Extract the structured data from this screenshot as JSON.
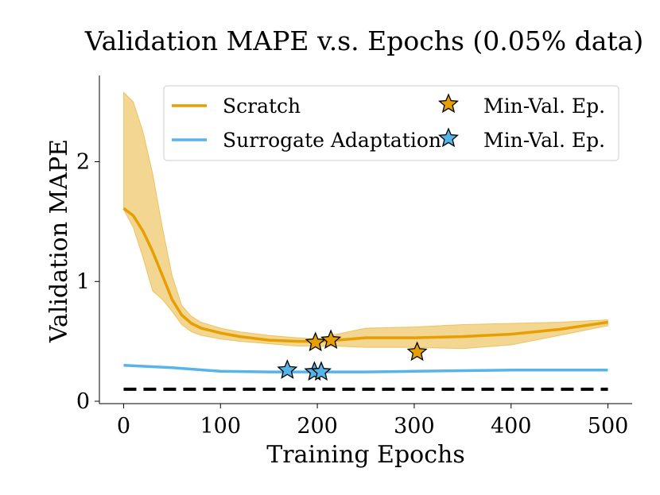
{
  "chart_data": {
    "type": "line",
    "title": "Validation MAPE v.s. Epochs (0.05% data)",
    "xlabel": "Training Epochs",
    "ylabel": "Validation MAPE",
    "xlim": [
      -25,
      525
    ],
    "ylim": [
      -0.02,
      2.72
    ],
    "xticks": [
      {
        "value": 0,
        "label": "0"
      },
      {
        "value": 100,
        "label": "100"
      },
      {
        "value": 200,
        "label": "200"
      },
      {
        "value": 300,
        "label": "300"
      },
      {
        "value": 400,
        "label": "400"
      },
      {
        "value": 500,
        "label": "500"
      }
    ],
    "yticks": [
      {
        "value": 0,
        "label": "0"
      },
      {
        "value": 1,
        "label": "1"
      },
      {
        "value": 2,
        "label": "2"
      }
    ],
    "series": [
      {
        "name": "Scratch",
        "color": "#E69F00",
        "band_color": "#F2CF80",
        "x": [
          0,
          10,
          20,
          30,
          40,
          50,
          60,
          70,
          80,
          100,
          120,
          150,
          180,
          200,
          220,
          250,
          300,
          350,
          400,
          450,
          500
        ],
        "mean": [
          1.61,
          1.55,
          1.42,
          1.25,
          1.05,
          0.85,
          0.72,
          0.65,
          0.61,
          0.57,
          0.54,
          0.51,
          0.5,
          0.5,
          0.51,
          0.53,
          0.53,
          0.54,
          0.56,
          0.6,
          0.66
        ],
        "upper": [
          2.58,
          2.5,
          2.25,
          1.9,
          1.45,
          1.05,
          0.8,
          0.71,
          0.66,
          0.61,
          0.58,
          0.55,
          0.53,
          0.52,
          0.56,
          0.61,
          0.62,
          0.64,
          0.65,
          0.66,
          0.68
        ],
        "lower": [
          1.6,
          1.45,
          1.2,
          0.92,
          0.85,
          0.75,
          0.64,
          0.58,
          0.55,
          0.52,
          0.5,
          0.48,
          0.46,
          0.46,
          0.46,
          0.45,
          0.45,
          0.44,
          0.47,
          0.55,
          0.63
        ]
      },
      {
        "name": "Surrogate Adaptation",
        "color": "#56B4E9",
        "x": [
          0,
          50,
          100,
          150,
          200,
          250,
          300,
          350,
          400,
          450,
          500
        ],
        "mean": [
          0.3,
          0.28,
          0.25,
          0.245,
          0.245,
          0.245,
          0.25,
          0.255,
          0.26,
          0.26,
          0.26
        ]
      }
    ],
    "reference_line": {
      "y": 0.1,
      "style": "dashed",
      "color": "#000000"
    },
    "markers": [
      {
        "series": "Scratch",
        "label": "Min-Val. Ep.",
        "color": "#E69F00",
        "points": [
          {
            "x": 198,
            "y": 0.49
          },
          {
            "x": 214,
            "y": 0.51
          },
          {
            "x": 303,
            "y": 0.41
          }
        ]
      },
      {
        "series": "Surrogate Adaptation",
        "label": "Min-Val. Ep.",
        "color": "#56B4E9",
        "points": [
          {
            "x": 169,
            "y": 0.26
          },
          {
            "x": 197,
            "y": 0.245
          },
          {
            "x": 204,
            "y": 0.245
          }
        ]
      }
    ],
    "legend": {
      "position": "top-right",
      "entries": [
        {
          "label": "Scratch",
          "kind": "line",
          "color": "#E69F00"
        },
        {
          "label": "Min-Val. Ep.",
          "kind": "star",
          "color": "#E69F00"
        },
        {
          "label": "Surrogate Adaptation",
          "kind": "line",
          "color": "#56B4E9"
        },
        {
          "label": "Min-Val. Ep.",
          "kind": "star",
          "color": "#56B4E9"
        }
      ]
    }
  }
}
